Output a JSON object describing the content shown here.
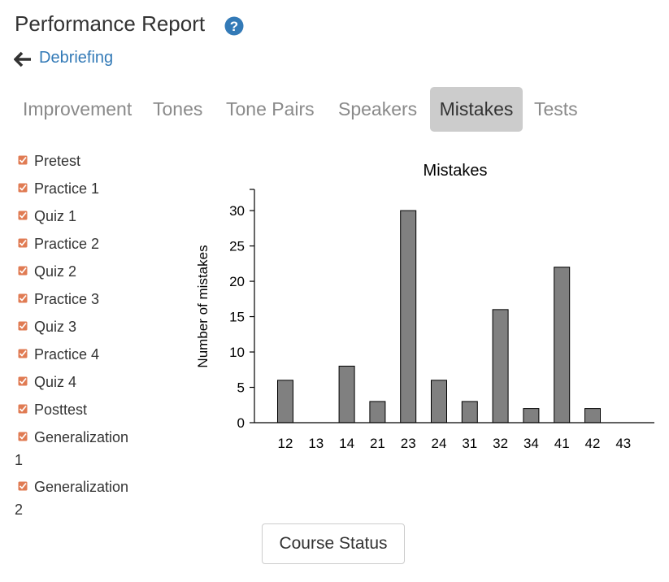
{
  "header": {
    "title": "Performance Report",
    "help_icon": "question-circle-icon"
  },
  "back": {
    "icon": "arrow-left-icon",
    "label": "Debriefing"
  },
  "tabs": [
    {
      "label": "Improvement",
      "active": false
    },
    {
      "label": "Tones",
      "active": false
    },
    {
      "label": "Tone Pairs",
      "active": false
    },
    {
      "label": "Speakers",
      "active": false
    },
    {
      "label": "Mistakes",
      "active": true
    },
    {
      "label": "Tests",
      "active": false
    }
  ],
  "legend": {
    "items": [
      {
        "label": "Pretest",
        "checked": true
      },
      {
        "label": "Practice 1",
        "checked": true
      },
      {
        "label": "Quiz 1",
        "checked": true
      },
      {
        "label": "Practice 2",
        "checked": true
      },
      {
        "label": "Quiz 2",
        "checked": true
      },
      {
        "label": "Practice 3",
        "checked": true
      },
      {
        "label": "Quiz 3",
        "checked": true
      },
      {
        "label": "Practice 4",
        "checked": true
      },
      {
        "label": "Quiz 4",
        "checked": true
      },
      {
        "label": "Posttest",
        "checked": true
      },
      {
        "label": "Generalization",
        "label_line2": "1",
        "checked": true
      },
      {
        "label": "Generalization",
        "label_line2": "2",
        "checked": true
      }
    ],
    "checkbox_color": "#e07b53"
  },
  "chart_data": {
    "type": "bar",
    "title": "Mistakes",
    "xlabel": "",
    "ylabel": "Number of mistakes",
    "categories": [
      "12",
      "13",
      "14",
      "21",
      "23",
      "24",
      "31",
      "32",
      "34",
      "41",
      "42",
      "43"
    ],
    "values": [
      6,
      0,
      8,
      3,
      30,
      6,
      3,
      16,
      2,
      22,
      2,
      0
    ],
    "ylim": [
      0,
      33
    ],
    "yticks": [
      0,
      5,
      10,
      15,
      20,
      25,
      30
    ],
    "bar_color": "#808080",
    "grid": false
  },
  "footer": {
    "button_label": "Course Status"
  }
}
